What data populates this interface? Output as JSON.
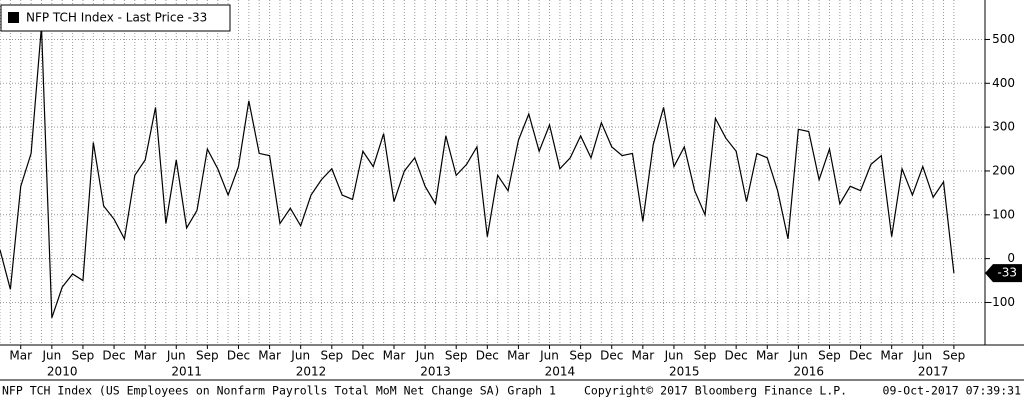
{
  "chart_data": {
    "type": "line",
    "series": [
      {
        "name": "NFP TCH Index - Last Price -33",
        "color": "#000000",
        "values": [
          20,
          -70,
          165,
          240,
          530,
          -135,
          -65,
          -35,
          -50,
          265,
          120,
          90,
          45,
          190,
          225,
          345,
          80,
          225,
          70,
          110,
          250,
          205,
          145,
          210,
          360,
          240,
          235,
          80,
          115,
          75,
          145,
          180,
          205,
          145,
          135,
          245,
          210,
          285,
          130,
          200,
          230,
          165,
          125,
          280,
          190,
          215,
          255,
          50,
          190,
          155,
          270,
          330,
          245,
          305,
          205,
          230,
          280,
          230,
          310,
          255,
          235,
          240,
          85,
          260,
          345,
          210,
          255,
          155,
          100,
          320,
          275,
          245,
          130,
          240,
          230,
          155,
          45,
          295,
          290,
          180,
          250,
          125,
          165,
          155,
          215,
          235,
          50,
          205,
          145,
          210,
          140,
          175,
          -33
        ]
      }
    ],
    "x": [
      "2010-01",
      "2010-02",
      "2010-03",
      "2010-04",
      "2010-05",
      "2010-06",
      "2010-07",
      "2010-08",
      "2010-09",
      "2010-10",
      "2010-11",
      "2010-12",
      "2011-01",
      "2011-02",
      "2011-03",
      "2011-04",
      "2011-05",
      "2011-06",
      "2011-07",
      "2011-08",
      "2011-09",
      "2011-10",
      "2011-11",
      "2011-12",
      "2012-01",
      "2012-02",
      "2012-03",
      "2012-04",
      "2012-05",
      "2012-06",
      "2012-07",
      "2012-08",
      "2012-09",
      "2012-10",
      "2012-11",
      "2012-12",
      "2013-01",
      "2013-02",
      "2013-03",
      "2013-04",
      "2013-05",
      "2013-06",
      "2013-07",
      "2013-08",
      "2013-09",
      "2013-10",
      "2013-11",
      "2013-12",
      "2014-01",
      "2014-02",
      "2014-03",
      "2014-04",
      "2014-05",
      "2014-06",
      "2014-07",
      "2014-08",
      "2014-09",
      "2014-10",
      "2014-11",
      "2014-12",
      "2015-01",
      "2015-02",
      "2015-03",
      "2015-04",
      "2015-05",
      "2015-06",
      "2015-07",
      "2015-08",
      "2015-09",
      "2015-10",
      "2015-11",
      "2015-12",
      "2016-01",
      "2016-02",
      "2016-03",
      "2016-04",
      "2016-05",
      "2016-06",
      "2016-07",
      "2016-08",
      "2016-09",
      "2016-10",
      "2016-11",
      "2016-12",
      "2017-01",
      "2017-02",
      "2017-03",
      "2017-04",
      "2017-05",
      "2017-06",
      "2017-07",
      "2017-08",
      "2017-09"
    ],
    "xlim": [
      "2010-01",
      "2017-12"
    ],
    "xticks": [
      {
        "value": "2010-03",
        "label": "Mar"
      },
      {
        "value": "2010-06",
        "label": "Jun"
      },
      {
        "value": "2010-09",
        "label": "Sep"
      },
      {
        "value": "2010-12",
        "label": "Dec"
      },
      {
        "value": "2011-03",
        "label": "Mar"
      },
      {
        "value": "2011-06",
        "label": "Jun"
      },
      {
        "value": "2011-09",
        "label": "Sep"
      },
      {
        "value": "2011-12",
        "label": "Dec"
      },
      {
        "value": "2012-03",
        "label": "Mar"
      },
      {
        "value": "2012-06",
        "label": "Jun"
      },
      {
        "value": "2012-09",
        "label": "Sep"
      },
      {
        "value": "2012-12",
        "label": "Dec"
      },
      {
        "value": "2013-03",
        "label": "Mar"
      },
      {
        "value": "2013-06",
        "label": "Jun"
      },
      {
        "value": "2013-09",
        "label": "Sep"
      },
      {
        "value": "2013-12",
        "label": "Dec"
      },
      {
        "value": "2014-03",
        "label": "Mar"
      },
      {
        "value": "2014-06",
        "label": "Jun"
      },
      {
        "value": "2014-09",
        "label": "Sep"
      },
      {
        "value": "2014-12",
        "label": "Dec"
      },
      {
        "value": "2015-03",
        "label": "Mar"
      },
      {
        "value": "2015-06",
        "label": "Jun"
      },
      {
        "value": "2015-09",
        "label": "Sep"
      },
      {
        "value": "2015-12",
        "label": "Dec"
      },
      {
        "value": "2016-03",
        "label": "Mar"
      },
      {
        "value": "2016-06",
        "label": "Jun"
      },
      {
        "value": "2016-09",
        "label": "Sep"
      },
      {
        "value": "2016-12",
        "label": "Dec"
      },
      {
        "value": "2017-03",
        "label": "Mar"
      },
      {
        "value": "2017-06",
        "label": "Jun"
      },
      {
        "value": "2017-09",
        "label": "Sep"
      }
    ],
    "year_ticks": [
      {
        "value": "2010-07",
        "label": "2010"
      },
      {
        "value": "2011-07",
        "label": "2011"
      },
      {
        "value": "2012-07",
        "label": "2012"
      },
      {
        "value": "2013-07",
        "label": "2013"
      },
      {
        "value": "2014-07",
        "label": "2014"
      },
      {
        "value": "2015-07",
        "label": "2015"
      },
      {
        "value": "2016-07",
        "label": "2016"
      },
      {
        "value": "2017-07",
        "label": "2017"
      }
    ],
    "ylim": [
      -197,
      590
    ],
    "yticks": [
      -100,
      0,
      100,
      200,
      300,
      400,
      500
    ],
    "grid": true,
    "legend": "top-left",
    "footer": {
      "description": "NFP TCH Index (US Employees on Nonfarm Payrolls Total MoM Net Change SA) Graph 1",
      "copyright": "Copyright© 2017 Bloomberg Finance L.P.",
      "timestamp": "09-Oct-2017 07:39:31"
    }
  }
}
